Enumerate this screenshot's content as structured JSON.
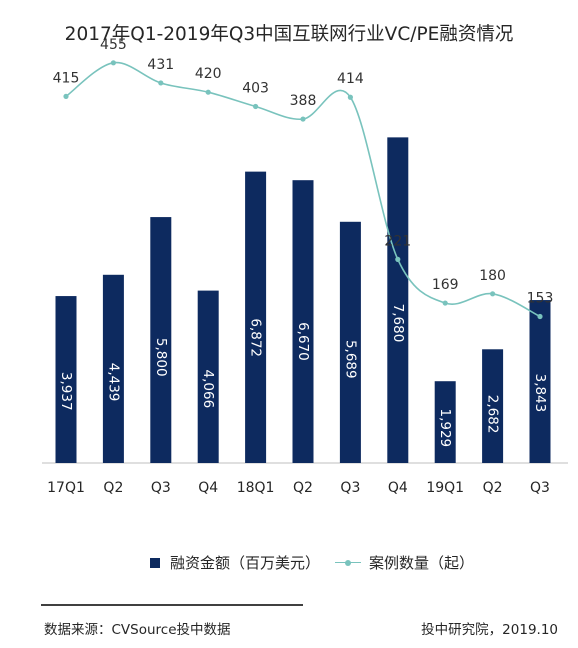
{
  "chart_data": {
    "type": "bar",
    "title": "2017年Q1-2019年Q3中国互联网行业VC/PE融资情况",
    "categories": [
      "17Q1",
      "Q2",
      "Q3",
      "Q4",
      "18Q1",
      "Q2",
      "Q3",
      "Q4",
      "19Q1",
      "Q2",
      "Q3"
    ],
    "series": [
      {
        "name": "融资金额（百万美元）",
        "type": "bar",
        "color": "#0d2a5f",
        "values": [
          3937,
          4439,
          5800,
          4066,
          6872,
          6670,
          5689,
          7680,
          1929,
          2682,
          3843
        ],
        "labels": [
          "3,937",
          "4,439",
          "5,800",
          "4,066",
          "6,872",
          "6,670",
          "5,689",
          "7,680",
          "1,929",
          "2,682",
          "3,843"
        ]
      },
      {
        "name": "案例数量（起）",
        "type": "line",
        "color": "#79c3bd",
        "values": [
          415,
          455,
          431,
          420,
          403,
          388,
          414,
          221,
          169,
          180,
          153
        ],
        "labels": [
          "415",
          "455",
          "431",
          "420",
          "403",
          "388",
          "414",
          "221",
          "169",
          "180",
          "153"
        ]
      }
    ],
    "legend_position": "bottom",
    "grid": false
  },
  "footer": {
    "source": "数据来源：CVSource投中数据",
    "publisher": "投中研究院，2019.10"
  }
}
